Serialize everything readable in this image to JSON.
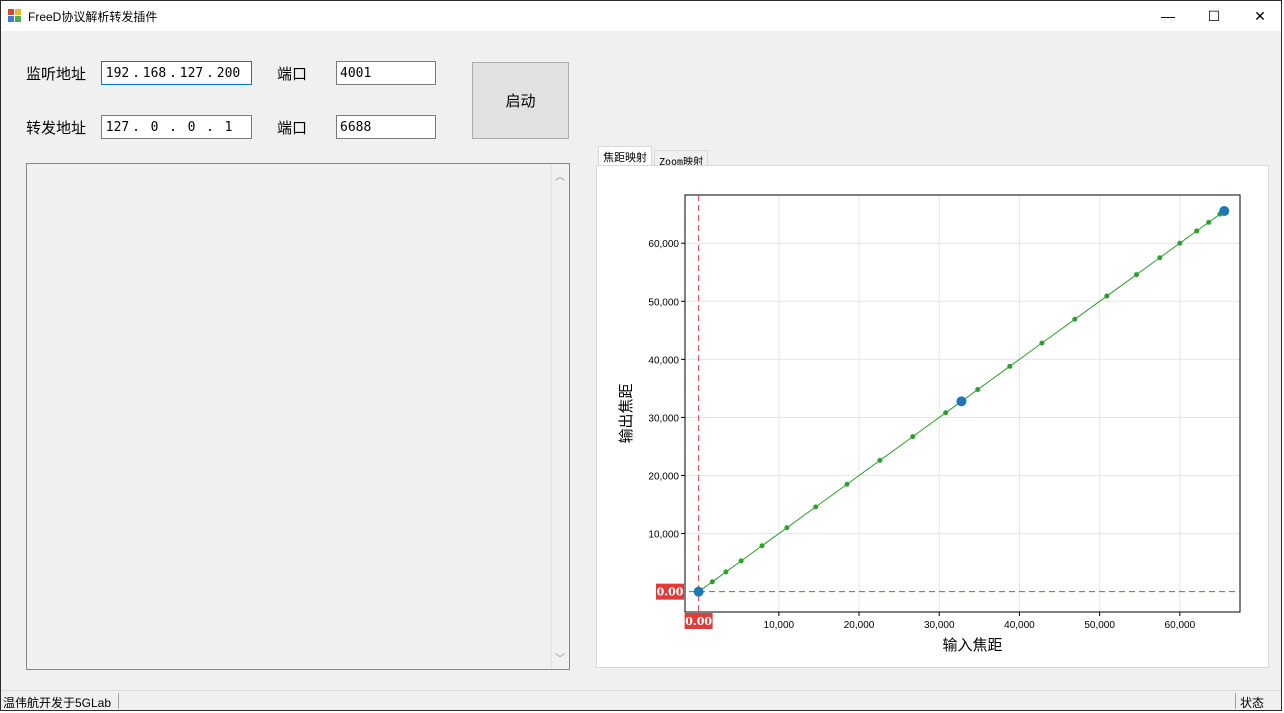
{
  "window": {
    "title": "FreeD协议解析转发插件",
    "minimize_glyph": "—",
    "maximize_glyph": "☐",
    "close_glyph": "✕"
  },
  "listen": {
    "label": "监听地址",
    "ip": [
      "192",
      "168",
      "127",
      "200"
    ],
    "port_label": "端口",
    "port": "4001"
  },
  "forward": {
    "label": "转发地址",
    "ip": [
      "127",
      "0",
      "0",
      "1"
    ],
    "port_label": "端口",
    "port": "6688"
  },
  "start_button": "启动",
  "tabs": [
    {
      "label": "焦距映射",
      "active": true
    },
    {
      "label": "Zoom映射",
      "active": false
    }
  ],
  "status": {
    "left": "温伟航开发于5GLab",
    "right": "状态"
  },
  "colors": {
    "line": "#2ca02c",
    "control_point": "#1f77b4",
    "crosshair": "#e03c3c"
  },
  "chart_data": {
    "type": "line",
    "xlabel": "输入焦距",
    "ylabel": "输出焦距",
    "xlim": [
      -1700,
      67500
    ],
    "ylim": [
      -3500,
      68300
    ],
    "x_ticks": [
      10000,
      20000,
      30000,
      40000,
      50000,
      60000
    ],
    "y_ticks": [
      10000,
      20000,
      30000,
      40000,
      50000,
      60000
    ],
    "tick_labels_x": [
      "10,000",
      "20,000",
      "30,000",
      "40,000",
      "50,000",
      "60,000"
    ],
    "tick_labels_y": [
      "10,000",
      "20,000",
      "30,000",
      "40,000",
      "50,000",
      "60,000"
    ],
    "grid": true,
    "series": [
      {
        "values_x": [
          0,
          1700,
          3400,
          5300,
          7900,
          11000,
          14600,
          18500,
          22600,
          26700,
          30800,
          34800,
          38800,
          42800,
          46900,
          50900,
          54600,
          57500,
          60000,
          62100,
          63600,
          65000,
          65535
        ],
        "values_y": [
          0,
          1700,
          3400,
          5300,
          7900,
          11000,
          14600,
          18500,
          22600,
          26700,
          30800,
          34800,
          38800,
          42800,
          46900,
          50900,
          54600,
          57500,
          60000,
          62100,
          63600,
          65000,
          65535
        ]
      }
    ],
    "control_points": {
      "x": [
        0,
        32768,
        65535
      ],
      "y": [
        0,
        32768,
        65535
      ]
    },
    "crosshair": {
      "x": 0,
      "y": 0,
      "x_label": "0.00",
      "y_label": "0.00"
    }
  }
}
